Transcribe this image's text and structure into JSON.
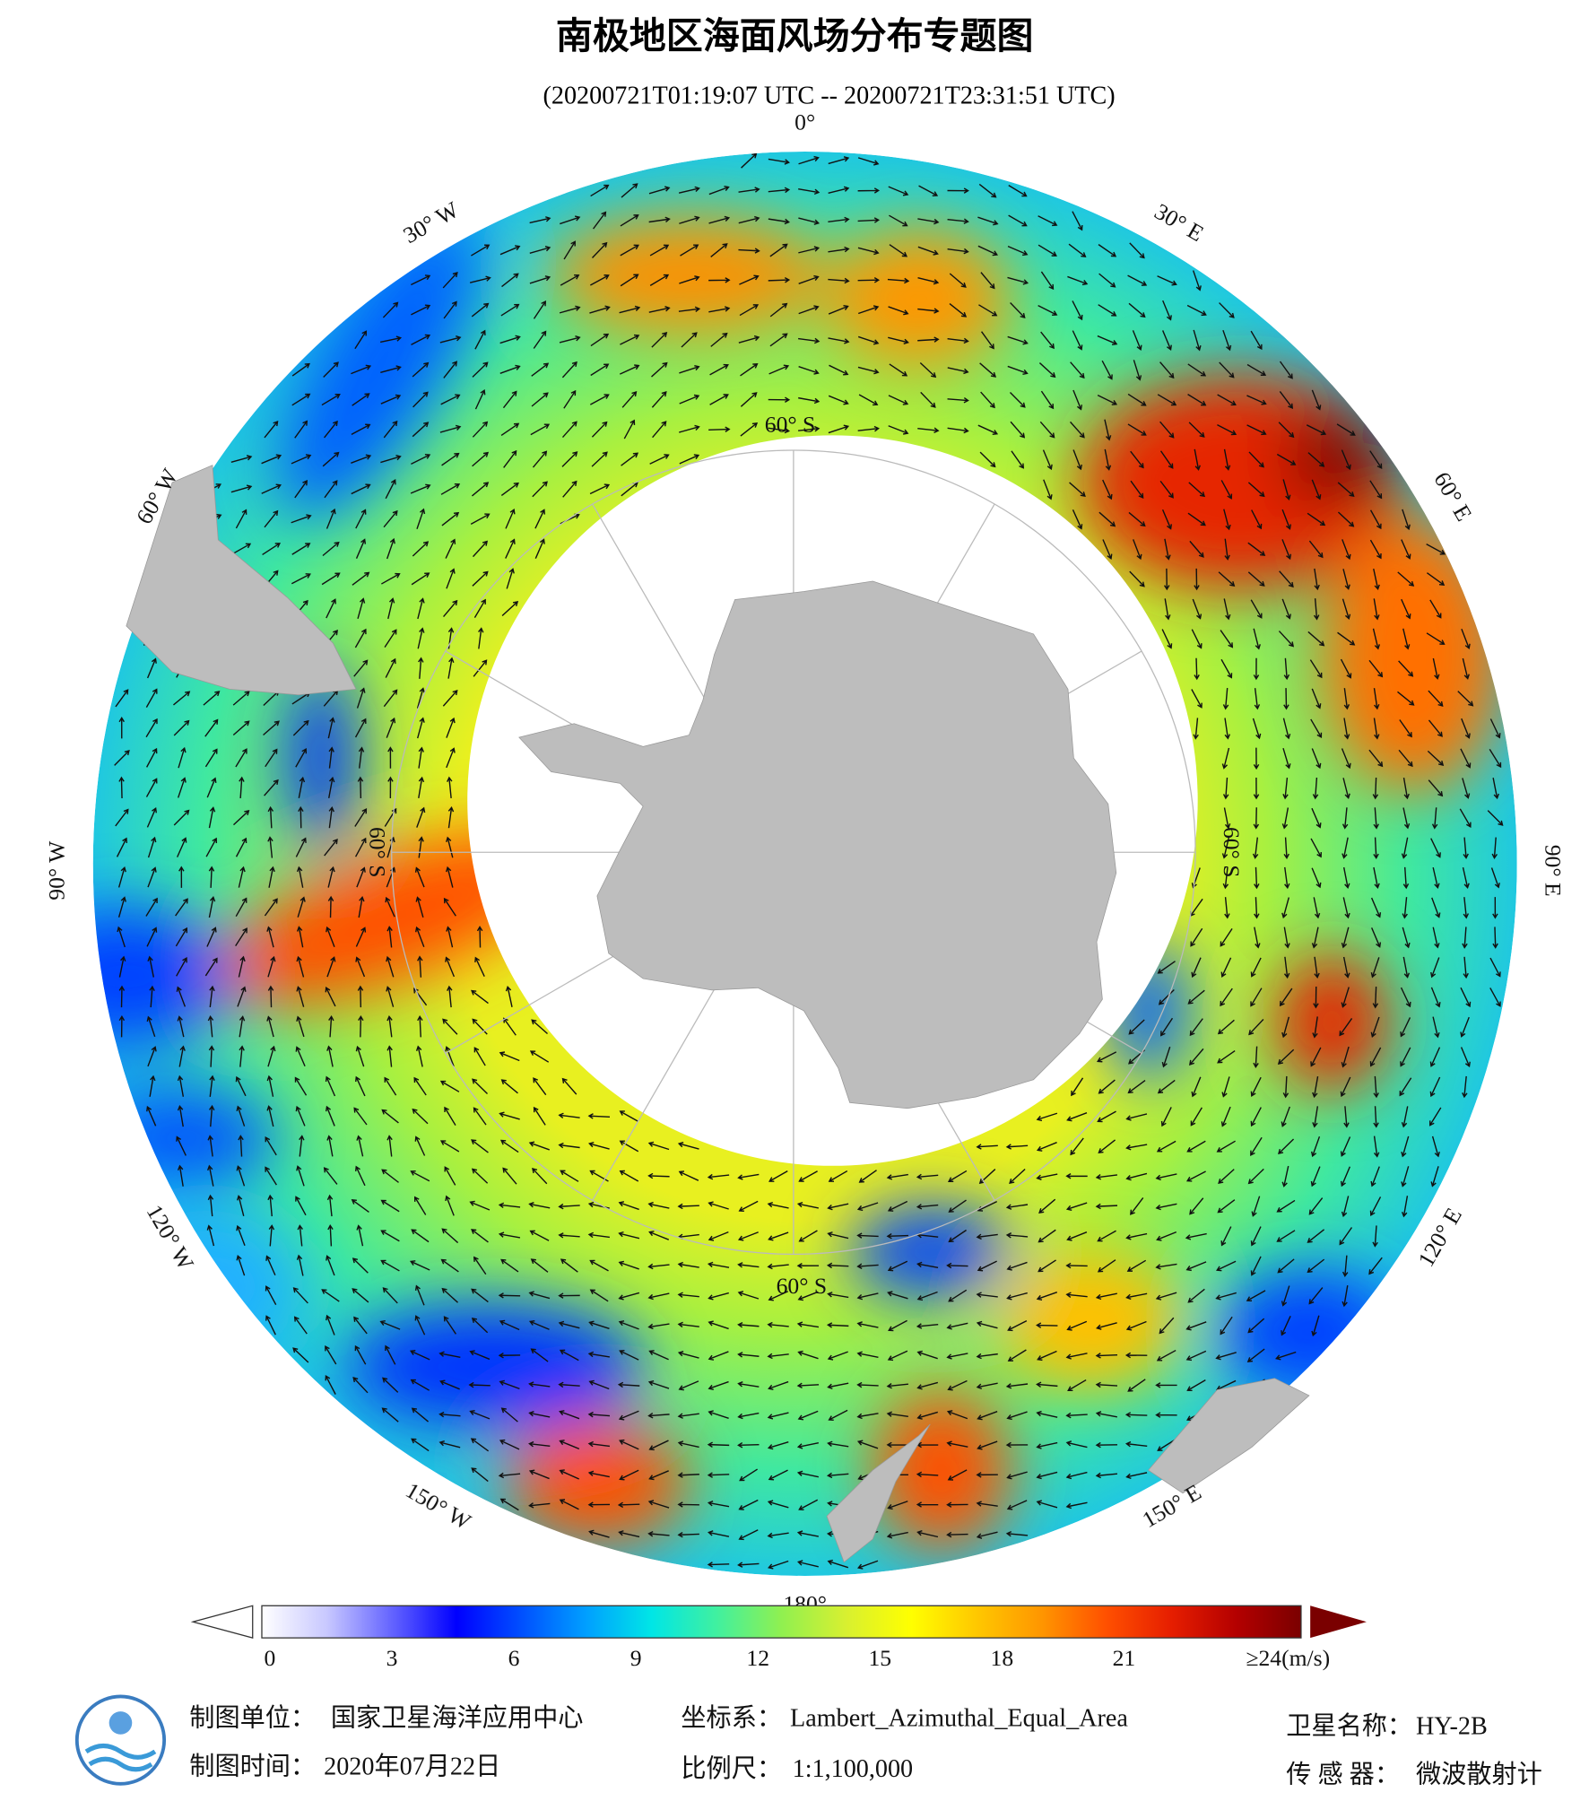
{
  "title": "南极地区海面风场分布专题图",
  "subtitle": "(20200721T01:19:07 UTC -- 20200721T23:31:51 UTC)",
  "map": {
    "longitude_labels": [
      "0°",
      "30° E",
      "60° E",
      "90° E",
      "120° E",
      "150° E",
      "180°",
      "150° W",
      "120° W",
      "90° W",
      "60° W",
      "30° W"
    ],
    "latitude_labels": [
      "60° S",
      "60° S",
      "60° S",
      "60° S"
    ]
  },
  "colorbar": {
    "lim": [
      0,
      24
    ],
    "ticks": [
      0,
      3,
      6,
      9,
      12,
      15,
      18,
      21,
      {
        "value": 24,
        "label": "≥24(m/s)"
      }
    ],
    "colors": [
      "#ffffff",
      "#c8c8ff",
      "#6464ff",
      "#0000ff",
      "#0050ff",
      "#00a0ff",
      "#00e6e6",
      "#40f0a0",
      "#90f050",
      "#d8f030",
      "#ffff00",
      "#ffc800",
      "#ff9600",
      "#ff5000",
      "#e61e00",
      "#b40000",
      "#7a0000"
    ]
  },
  "footer": {
    "unit_label": "制图单位：",
    "unit": "国家卫星海洋应用中心",
    "time_label": "制图时间：",
    "time": "2020年07月22日",
    "crs_label": "坐标系：",
    "crs": "Lambert_Azimuthal_Equal_Area",
    "scale_label": "比例尺：",
    "scale": "1:1,100,000",
    "satellite_label": "卫星名称：",
    "satellite": "HY-2B",
    "sensor_label": "传 感 器：",
    "sensor": "微波散射计"
  }
}
